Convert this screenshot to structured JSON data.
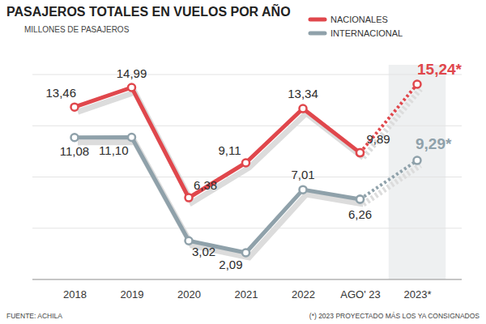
{
  "chart_data": {
    "type": "line",
    "title": "PASAJEROS TOTALES EN VUELOS POR AÑO",
    "subtitle": "MILLONES DE PASAJEROS",
    "annotations": [
      "FUENTE: ACHILA",
      "(*) 2023 PROYECTADO MÁS LOS YA CONSIGNADOS"
    ],
    "categories": [
      "2018",
      "2019",
      "2020",
      "2021",
      "2022",
      "AGO' 23",
      "2023*"
    ],
    "series": [
      {
        "name": "NACIONALES",
        "color": "#e0474c",
        "line_style": "solid",
        "marker": "circle",
        "values": [
          13.46,
          14.99,
          6.38,
          9.11,
          13.34,
          9.89,
          null
        ],
        "value_labels": [
          "13,46",
          "14,99",
          "6,38",
          "9,11",
          "13,34",
          "9,89",
          null
        ]
      },
      {
        "name": "INTERNACIONAL",
        "color": "#8fa1aa",
        "line_style": "solid",
        "marker": "circle",
        "values": [
          11.08,
          11.1,
          3.02,
          2.09,
          7.01,
          6.26,
          null
        ],
        "value_labels": [
          "11,08",
          "11,10",
          "3,02",
          "2,09",
          "7,01",
          "6,26",
          null
        ]
      },
      {
        "color": "#e0474c",
        "line_style": "dotted",
        "marker": "circle",
        "values": [
          null,
          null,
          null,
          null,
          null,
          9.89,
          15.24
        ],
        "value_labels": [
          null,
          null,
          null,
          null,
          null,
          null,
          "15,24*"
        ]
      },
      {
        "color": "#8fa1aa",
        "line_style": "dotted",
        "marker": "circle",
        "values": [
          null,
          null,
          null,
          null,
          null,
          6.26,
          9.29
        ],
        "value_labels": [
          null,
          null,
          null,
          null,
          null,
          null,
          "9,29*"
        ]
      }
    ],
    "ylim": [
      0,
      16
    ],
    "yticks": [
      0,
      4,
      8,
      12,
      16
    ],
    "grid": true,
    "legend": "top-right",
    "data_labels": true,
    "tick_labels": "x"
  }
}
